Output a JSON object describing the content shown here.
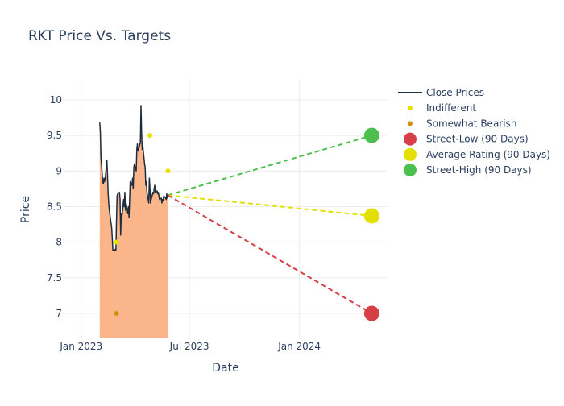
{
  "chart_data": {
    "type": "line",
    "title": "RKT Price Vs. Targets",
    "xlabel": "Date",
    "ylabel": "Price",
    "ylim": [
      6.65,
      10.27
    ],
    "xlim": [
      "2022-12-04",
      "2024-05-26"
    ],
    "y_ticks": [
      7,
      7.5,
      8,
      8.5,
      9,
      9.5,
      10
    ],
    "y_tick_labels": [
      "7",
      "7.5",
      "8",
      "8.5",
      "9",
      "9.5",
      "10"
    ],
    "x_ticks": [
      "2023-01-01",
      "2023-07-01",
      "2024-01-01"
    ],
    "x_tick_labels": [
      "Jan 2023",
      "Jul 2023",
      "Jan 2024"
    ],
    "grid": true,
    "legend_position": "top-right",
    "legend": [
      {
        "key": "close",
        "label": "Close Prices"
      },
      {
        "key": "indifferent",
        "label": "Indifferent"
      },
      {
        "key": "bearish",
        "label": "Somewhat Bearish"
      },
      {
        "key": "low",
        "label": "Street-Low (90 Days)"
      },
      {
        "key": "avg",
        "label": "Average Rating (90 Days)"
      },
      {
        "key": "high",
        "label": "Street-High (90 Days)"
      }
    ],
    "colors": {
      "close_line": "#1f2d3d",
      "close_fill": "#fbb58a",
      "indifferent": "#e8e000",
      "bearish": "#d4900f",
      "low": "#d63f48",
      "avg": "#e3e000",
      "high": "#4dbf4f",
      "title": "#2a3f5f",
      "grid": "#ececec"
    },
    "close_prices": {
      "dates": [
        "2023-02-01",
        "2023-02-02",
        "2023-02-03",
        "2023-02-06",
        "2023-02-07",
        "2023-02-08",
        "2023-02-09",
        "2023-02-10",
        "2023-02-13",
        "2023-02-14",
        "2023-02-15",
        "2023-02-16",
        "2023-02-17",
        "2023-02-21",
        "2023-02-22",
        "2023-02-23",
        "2023-02-24",
        "2023-02-27",
        "2023-02-28",
        "2023-03-01",
        "2023-03-02",
        "2023-03-03",
        "2023-03-06",
        "2023-03-07",
        "2023-03-08",
        "2023-03-09",
        "2023-03-10",
        "2023-03-13",
        "2023-03-14",
        "2023-03-15",
        "2023-03-16",
        "2023-03-17",
        "2023-03-20",
        "2023-03-21",
        "2023-03-22",
        "2023-03-23",
        "2023-03-24",
        "2023-03-27",
        "2023-03-28",
        "2023-03-29",
        "2023-03-30",
        "2023-03-31",
        "2023-04-03",
        "2023-04-04",
        "2023-04-05",
        "2023-04-06",
        "2023-04-10",
        "2023-04-11",
        "2023-04-12",
        "2023-04-13",
        "2023-04-14",
        "2023-04-17",
        "2023-04-18",
        "2023-04-19",
        "2023-04-20",
        "2023-04-21",
        "2023-04-24",
        "2023-04-25",
        "2023-04-26",
        "2023-04-27",
        "2023-04-28",
        "2023-05-01",
        "2023-05-02",
        "2023-05-03",
        "2023-05-04",
        "2023-05-05",
        "2023-05-08",
        "2023-05-09",
        "2023-05-10",
        "2023-05-11",
        "2023-05-12",
        "2023-05-15",
        "2023-05-16",
        "2023-05-17",
        "2023-05-18",
        "2023-05-19",
        "2023-05-22",
        "2023-05-23",
        "2023-05-24",
        "2023-05-25",
        "2023-05-26"
      ],
      "values": [
        9.68,
        9.55,
        9.2,
        8.85,
        8.82,
        8.9,
        8.85,
        8.88,
        9.15,
        8.95,
        8.7,
        8.55,
        8.45,
        8.2,
        8.05,
        7.88,
        7.88,
        7.9,
        7.88,
        8.3,
        8.65,
        8.68,
        8.7,
        8.6,
        8.1,
        8.4,
        8.35,
        8.6,
        8.5,
        8.7,
        8.45,
        8.55,
        8.4,
        8.5,
        8.35,
        8.6,
        8.85,
        8.8,
        8.9,
        8.75,
        9.05,
        9.1,
        9.0,
        9.3,
        9.38,
        9.28,
        9.4,
        9.92,
        9.55,
        9.3,
        9.35,
        9.1,
        9.05,
        8.8,
        8.85,
        8.7,
        8.55,
        8.9,
        8.75,
        8.55,
        8.6,
        8.7,
        8.68,
        8.75,
        8.8,
        8.7,
        8.72,
        8.68,
        8.7,
        8.65,
        8.6,
        8.62,
        8.55,
        8.6,
        8.58,
        8.65,
        8.62,
        8.6,
        8.68,
        8.62,
        8.66
      ]
    },
    "ratings": {
      "indifferent": [
        {
          "date": "2023-03-01",
          "value": 8.0
        },
        {
          "date": "2023-04-26",
          "value": 9.5
        },
        {
          "date": "2023-05-26",
          "value": 9.0
        }
      ],
      "somewhat_bearish": [
        {
          "date": "2023-03-01",
          "value": 7.0
        }
      ]
    },
    "targets": {
      "start": {
        "date": "2023-05-26",
        "value": 8.66
      },
      "end_date": "2024-05-01",
      "street_low": 7.0,
      "average": 8.37,
      "street_high": 9.5
    }
  }
}
